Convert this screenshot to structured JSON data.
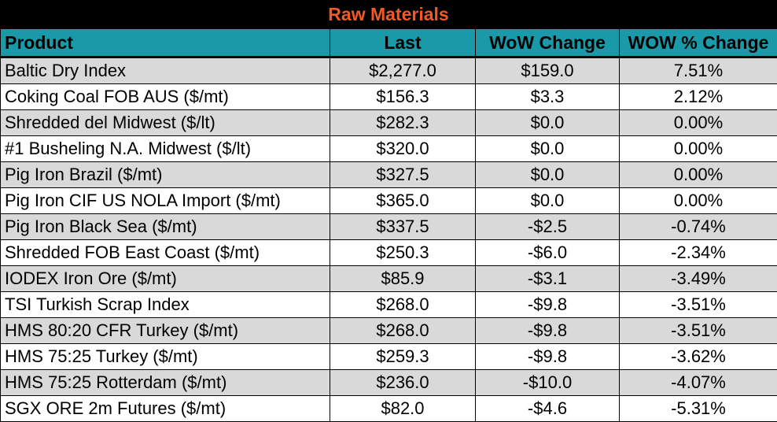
{
  "title": "Raw Materials",
  "colors": {
    "header_bg": "#1a9aa8",
    "title_bg": "#000000",
    "title_text": "#f15a24",
    "alt_row": "#d9d9d9"
  },
  "columns": [
    "Product",
    "Last",
    "WoW Change",
    "WOW % Change"
  ],
  "rows": [
    {
      "product": "Baltic Dry Index",
      "last": "$2,277.0",
      "wow": "$159.0",
      "pct": "7.51%"
    },
    {
      "product": "Coking Coal FOB AUS ($/mt)",
      "last": "$156.3",
      "wow": "$3.3",
      "pct": "2.12%"
    },
    {
      "product": "Shredded del  Midwest ($/lt)",
      "last": "$282.3",
      "wow": "$0.0",
      "pct": "0.00%"
    },
    {
      "product": "#1 Busheling N.A. Midwest ($/lt)",
      "last": "$320.0",
      "wow": "$0.0",
      "pct": "0.00%"
    },
    {
      "product": "Pig Iron Brazil ($/mt)",
      "last": "$327.5",
      "wow": "$0.0",
      "pct": "0.00%"
    },
    {
      "product": "Pig Iron CIF US NOLA Import ($/mt)",
      "last": "$365.0",
      "wow": "$0.0",
      "pct": "0.00%"
    },
    {
      "product": "Pig Iron Black Sea ($/mt)",
      "last": "$337.5",
      "wow": "-$2.5",
      "pct": "-0.74%"
    },
    {
      "product": "Shredded FOB East Coast ($/mt)",
      "last": "$250.3",
      "wow": "-$6.0",
      "pct": "-2.34%"
    },
    {
      "product": "IODEX  Iron Ore ($/mt)",
      "last": "$85.9",
      "wow": "-$3.1",
      "pct": "-3.49%"
    },
    {
      "product": "TSI Turkish Scrap Index",
      "last": "$268.0",
      "wow": "-$9.8",
      "pct": "-3.51%"
    },
    {
      "product": "HMS 80:20 CFR Turkey ($/mt)",
      "last": "$268.0",
      "wow": "-$9.8",
      "pct": "-3.51%"
    },
    {
      "product": "HMS 75:25 Turkey ($/mt)",
      "last": "$259.3",
      "wow": "-$9.8",
      "pct": "-3.62%"
    },
    {
      "product": "HMS 75:25 Rotterdam ($/mt)",
      "last": "$236.0",
      "wow": "-$10.0",
      "pct": "-4.07%"
    },
    {
      "product": "SGX ORE 2m Futures ($/mt)",
      "last": "$82.0",
      "wow": "-$4.6",
      "pct": "-5.31%"
    }
  ]
}
